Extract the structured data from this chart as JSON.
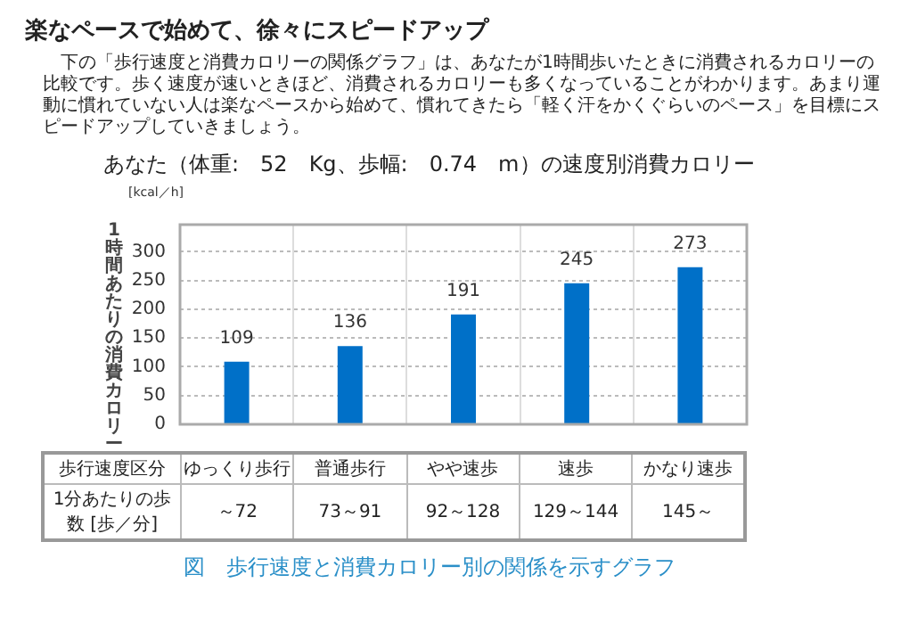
{
  "chart_data": {
    "type": "bar",
    "title": "楽なペースで始めて、徐々にスピードアップ",
    "subtitle": "あなた（体重:　52　Kg、歩幅:　0.74　m）の速度別消費カロリー",
    "xlabel": "歩行速度区分",
    "ylabel": "1時間あたりの消費カロリー",
    "categories": [
      "ゆっくり歩行",
      "普通歩行",
      "やや速歩",
      "速歩",
      "かなり速歩"
    ],
    "values": [
      109,
      136,
      191,
      245,
      273
    ],
    "color": "#0070c8",
    "ylim": [
      0,
      347
    ],
    "yticks": [
      0,
      50,
      100,
      150,
      200,
      250,
      300
    ],
    "grid": true,
    "data_labels": true,
    "annotations": [
      "下の「歩行速度と消費カロリーの関係グラフ」は、あなたが1時間歩いたときに消費されるカロリーの比較です。歩く速度が速いときほど、消費されるカロリーも多くなっていることがわかります。あまり運動に慣れていない人は楽なペースから始めて、慣れてきたら「軽く汗をかくぐらいのペース」を目標にスピードアップしていきましょう。",
      "[kcal／h]",
      "1分あたりの歩数 [歩／分]",
      "～72",
      "73～91",
      "92～128",
      "129～144",
      "145～",
      "図　歩行速度と消費カロリー別の関係を示すグラフ"
    ]
  }
}
